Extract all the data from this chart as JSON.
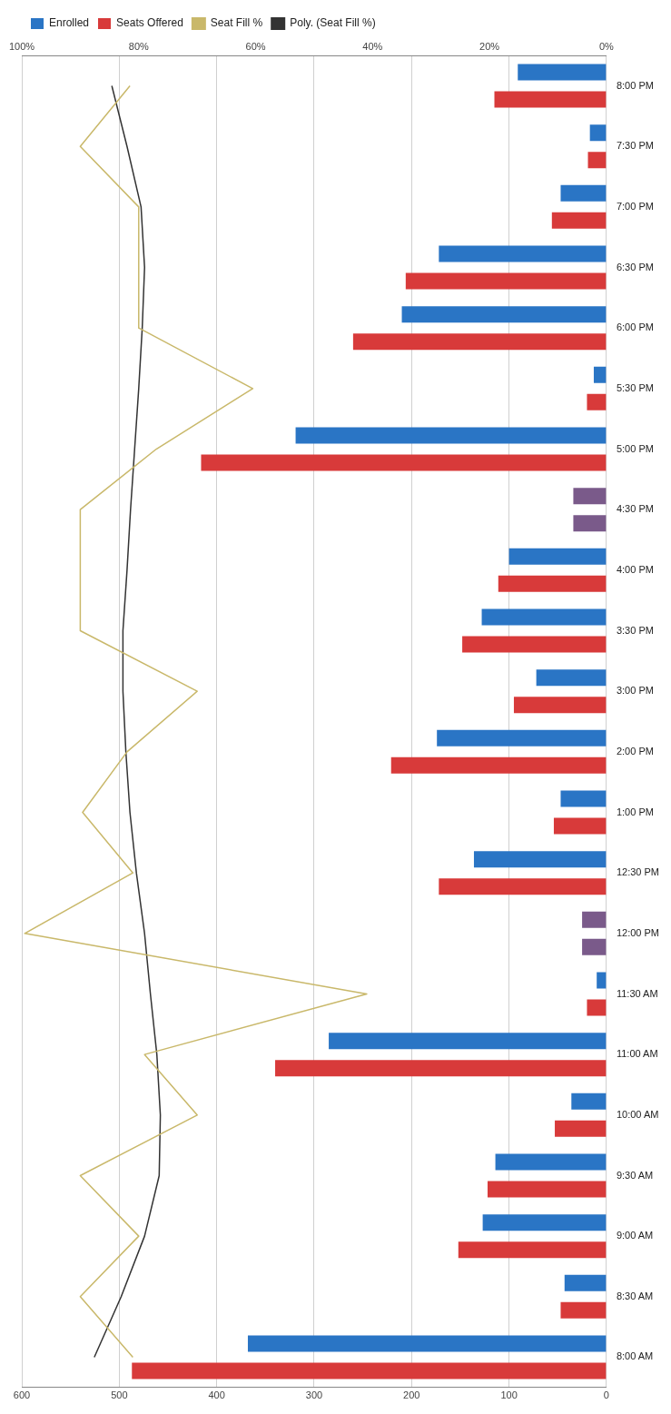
{
  "chart_data": {
    "type": "bar",
    "orientation": "horizontal",
    "categories": [
      "8:00 PM",
      "7:30 PM",
      "7:00 PM",
      "6:30 PM",
      "6:00 PM",
      "5:30 PM",
      "5:00 PM",
      "4:30 PM",
      "4:00 PM",
      "3:30 PM",
      "3:00 PM",
      "2:00 PM",
      "1:00 PM",
      "12:30 PM",
      "12:00 PM",
      "11:30 AM",
      "11:00 AM",
      "10:00 AM",
      "9:30 AM",
      "9:00 AM",
      "8:30 AM",
      "8:00 AM"
    ],
    "series": [
      {
        "name": "Enrolled",
        "color": "#2a75c5",
        "colors": [
          "#2a75c5",
          "#2a75c5",
          "#2a75c5",
          "#2a75c5",
          "#2a75c5",
          "#2a75c5",
          "#2a75c5",
          "#7a5a8a",
          "#2a75c5",
          "#2a75c5",
          "#2a75c5",
          "#2a75c5",
          "#2a75c5",
          "#2a75c5",
          "#7a5a8a",
          "#2a75c5",
          "#2a75c5",
          "#2a75c5",
          "#2a75c5",
          "#2a75c5",
          "#2a75c5",
          "#2a75c5"
        ],
        "values": [
          91,
          17,
          47,
          172,
          210,
          13,
          319,
          34,
          100,
          128,
          72,
          174,
          47,
          136,
          25,
          10,
          285,
          36,
          114,
          127,
          43,
          368
        ]
      },
      {
        "name": "Seats Offered",
        "color": "#d83a3a",
        "colors": [
          "#d83a3a",
          "#d83a3a",
          "#d83a3a",
          "#d83a3a",
          "#d83a3a",
          "#d83a3a",
          "#d83a3a",
          "#7a5a8a",
          "#d83a3a",
          "#d83a3a",
          "#d83a3a",
          "#d83a3a",
          "#d83a3a",
          "#d83a3a",
          "#7a5a8a",
          "#d83a3a",
          "#d83a3a",
          "#d83a3a",
          "#d83a3a",
          "#d83a3a",
          "#d83a3a",
          "#d83a3a"
        ],
        "values": [
          115,
          19,
          56,
          206,
          260,
          20,
          416,
          34,
          111,
          148,
          95,
          221,
          54,
          172,
          25,
          20,
          340,
          53,
          122,
          152,
          47,
          487
        ]
      },
      {
        "name": "Seat Fill %",
        "type": "line",
        "axis": "x2",
        "color": "#c9b86a",
        "values": [
          81.5,
          90,
          80,
          80,
          80,
          60.5,
          77,
          90,
          90,
          90,
          70,
          82,
          89.6,
          81,
          99.5,
          41,
          79,
          70,
          90,
          80,
          90,
          81
        ]
      },
      {
        "name": "Poly. (Seat Fill %)",
        "type": "line",
        "axis": "x2",
        "color": "#333333",
        "values": [
          84.6,
          82,
          79.6,
          79,
          79.4,
          80,
          80.7,
          81.4,
          82,
          82.7,
          82.7,
          82.2,
          81.5,
          80.4,
          79,
          78,
          76.9,
          76.3,
          76.5,
          79,
          83,
          87.6
        ]
      }
    ],
    "xlim": [
      600,
      0
    ],
    "xticks": [
      0,
      100,
      200,
      300,
      400,
      500,
      600
    ],
    "x2lim": [
      100,
      0
    ],
    "x2ticks": [
      {
        "value": 0,
        "label": "0%"
      },
      {
        "value": 20,
        "label": "20%"
      },
      {
        "value": 40,
        "label": "40%"
      },
      {
        "value": 60,
        "label": "60%"
      },
      {
        "value": 80,
        "label": "80%"
      },
      {
        "value": 100,
        "label": "100%"
      }
    ],
    "grid": "x",
    "legend": "top left",
    "marker": "none"
  }
}
